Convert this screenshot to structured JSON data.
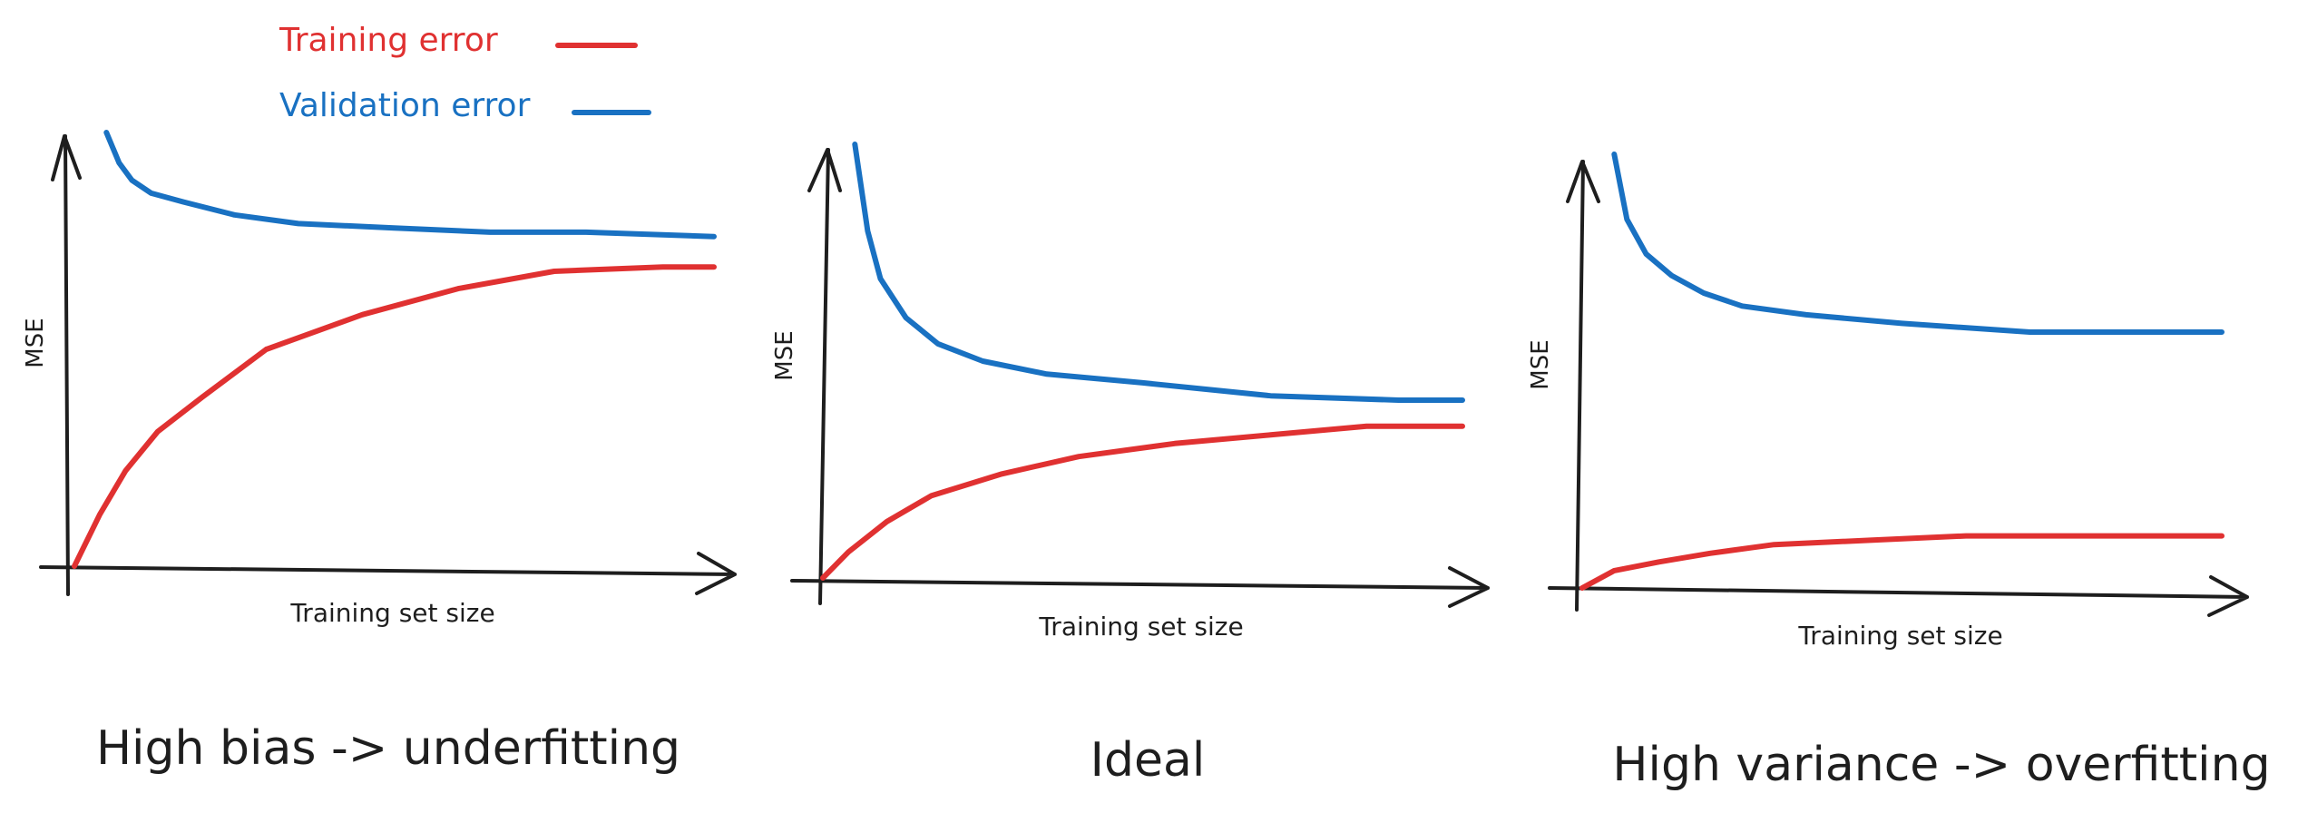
{
  "legend": {
    "placement": "top-left",
    "items": [
      {
        "label": "Training error",
        "color": "#e03131"
      },
      {
        "label": "Validation error",
        "color": "#1971c2"
      }
    ]
  },
  "chart_data": [
    {
      "type": "line",
      "title": "High bias -> underfitting",
      "xlabel": "Training set size",
      "ylabel": "MSE",
      "grid": false,
      "xlim": [
        0,
        100
      ],
      "ylim": [
        0,
        100
      ],
      "series": [
        {
          "name": "Training error",
          "color": "#e03131",
          "x": [
            0,
            4,
            8,
            13,
            20,
            30,
            45,
            60,
            75,
            92,
            100
          ],
          "y": [
            0,
            12,
            22,
            31,
            39,
            50,
            58,
            64,
            68,
            69,
            69
          ]
        },
        {
          "name": "Validation error",
          "color": "#1971c2",
          "x": [
            5,
            7,
            9,
            12,
            17,
            25,
            35,
            50,
            65,
            80,
            100
          ],
          "y": [
            100,
            93,
            89,
            86,
            84,
            81,
            79,
            78,
            77,
            77,
            76
          ]
        }
      ]
    },
    {
      "type": "line",
      "title": "Ideal",
      "xlabel": "Training set size",
      "ylabel": "MSE",
      "grid": false,
      "xlim": [
        0,
        100
      ],
      "ylim": [
        0,
        100
      ],
      "series": [
        {
          "name": "Training error",
          "color": "#e03131",
          "x": [
            0,
            4,
            10,
            17,
            28,
            40,
            55,
            70,
            85,
            100
          ],
          "y": [
            0,
            6,
            13,
            19,
            24,
            28,
            31,
            33,
            35,
            35
          ]
        },
        {
          "name": "Validation error",
          "color": "#1971c2",
          "x": [
            5,
            7,
            9,
            13,
            18,
            25,
            35,
            50,
            70,
            90,
            100
          ],
          "y": [
            100,
            80,
            69,
            60,
            54,
            50,
            47,
            45,
            42,
            41,
            41
          ]
        }
      ]
    },
    {
      "type": "line",
      "title": "High variance -> overfitting",
      "xlabel": "Training set size",
      "ylabel": "MSE",
      "grid": false,
      "xlim": [
        0,
        100
      ],
      "ylim": [
        0,
        100
      ],
      "series": [
        {
          "name": "Training error",
          "color": "#e03131",
          "x": [
            0,
            5,
            12,
            20,
            30,
            45,
            60,
            75,
            100
          ],
          "y": [
            0,
            4,
            6,
            8,
            10,
            11,
            12,
            12,
            12
          ]
        },
        {
          "name": "Validation error",
          "color": "#1971c2",
          "x": [
            5,
            7,
            10,
            14,
            19,
            25,
            35,
            50,
            70,
            90,
            100
          ],
          "y": [
            100,
            85,
            77,
            72,
            68,
            65,
            63,
            61,
            59,
            59,
            59
          ]
        }
      ]
    }
  ]
}
